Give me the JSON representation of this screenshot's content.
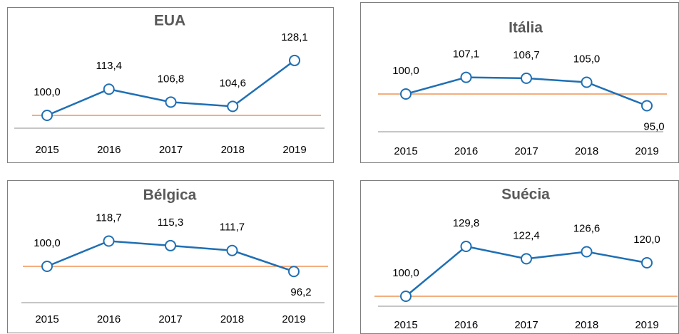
{
  "chart_data": [
    {
      "type": "line",
      "title": "EUA",
      "categories": [
        "2015",
        "2016",
        "2017",
        "2018",
        "2019"
      ],
      "values": [
        100.0,
        113.4,
        106.8,
        104.6,
        128.1
      ],
      "value_labels": [
        "100,0",
        "113,4",
        "106,8",
        "104,6",
        "128,1"
      ],
      "color": "#1f6fb4",
      "ylim": [
        90,
        135
      ],
      "hline": {
        "value": 100,
        "color": "#ed7d31"
      }
    },
    {
      "type": "line",
      "title": "Itália",
      "categories": [
        "2015",
        "2016",
        "2017",
        "2018",
        "2019"
      ],
      "values": [
        100.0,
        107.1,
        106.7,
        105.0,
        95.0
      ],
      "value_labels": [
        "100,0",
        "107,1",
        "106,7",
        "105,0",
        "95,0"
      ],
      "color": "#1f6fb4",
      "ylim": [
        85,
        115
      ],
      "hline": {
        "value": 100,
        "color": "#ed7d31"
      }
    },
    {
      "type": "line",
      "title": "Bélgica",
      "categories": [
        "2015",
        "2016",
        "2017",
        "2018",
        "2019"
      ],
      "values": [
        100.0,
        118.7,
        115.3,
        111.7,
        96.2
      ],
      "value_labels": [
        "100,0",
        "118,7",
        "115,3",
        "111,7",
        "96,2"
      ],
      "color": "#1f6fb4",
      "ylim": [
        90,
        130
      ],
      "hline": {
        "value": 100,
        "color": "#ed7d31"
      }
    },
    {
      "type": "line",
      "title": "Suécia",
      "categories": [
        "2015",
        "2016",
        "2017",
        "2018",
        "2019"
      ],
      "values": [
        100.0,
        129.8,
        122.4,
        126.6,
        120.0
      ],
      "value_labels": [
        "100,0",
        "129,8",
        "122,4",
        "126,6",
        "120,0"
      ],
      "color": "#1f6fb4",
      "ylim": [
        95,
        140
      ],
      "hline": {
        "value": 100,
        "color": "#ed7d31"
      }
    }
  ]
}
